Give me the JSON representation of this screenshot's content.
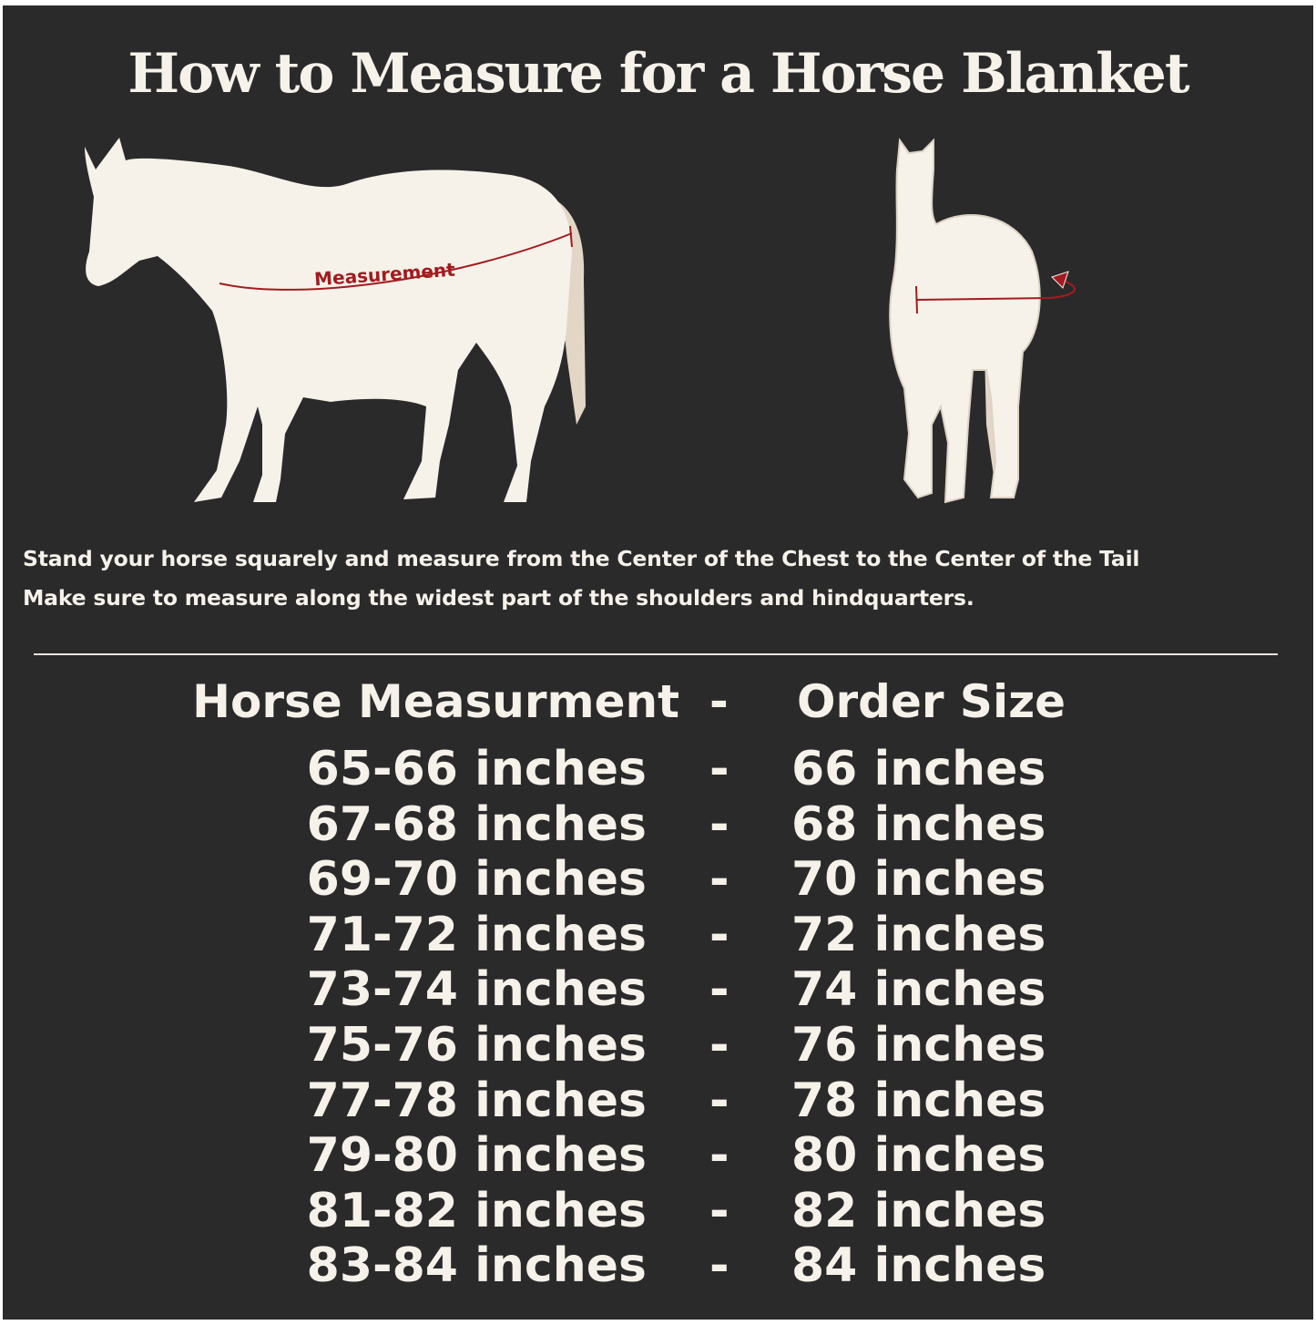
{
  "title": "How to Measure for a Horse Blanket",
  "illustration": {
    "side_label": "Measurement",
    "side_icon": "horse-side-view",
    "front_icon": "horse-front-view",
    "accent_color": "#a31b1f"
  },
  "instructions": [
    "Stand your horse squarely and measure from the Center of the Chest to the Center of the Tail",
    "Make sure to measure along the widest part of the shoulders and hindquarters."
  ],
  "table": {
    "header": {
      "left": "Horse Measurment",
      "sep": "-",
      "right": "Order Size"
    },
    "rows": [
      {
        "measurement": "65-66 inches",
        "sep": "-",
        "size": "66 inches"
      },
      {
        "measurement": "67-68 inches",
        "sep": "-",
        "size": "68 inches"
      },
      {
        "measurement": "69-70 inches",
        "sep": "-",
        "size": "70 inches"
      },
      {
        "measurement": "71-72 inches",
        "sep": "-",
        "size": "72 inches"
      },
      {
        "measurement": "73-74 inches",
        "sep": "-",
        "size": "74 inches"
      },
      {
        "measurement": "75-76 inches",
        "sep": "-",
        "size": "76 inches"
      },
      {
        "measurement": "77-78 inches",
        "sep": "-",
        "size": "78 inches"
      },
      {
        "measurement": "79-80 inches",
        "sep": "-",
        "size": "80 inches"
      },
      {
        "measurement": "81-82 inches",
        "sep": "-",
        "size": "82 inches"
      },
      {
        "measurement": "83-84 inches",
        "sep": "-",
        "size": "84 inches"
      }
    ]
  }
}
